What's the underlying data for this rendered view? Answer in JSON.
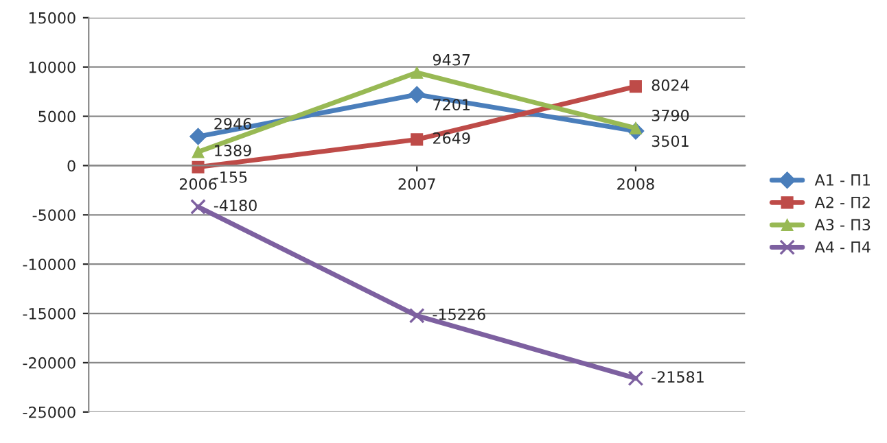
{
  "chart_data": {
    "type": "line",
    "categories": [
      "2006",
      "2007",
      "2008"
    ],
    "series": [
      {
        "name": "А1 - П1",
        "color": "#4a7ebb",
        "marker": "diamond",
        "values": [
          2946,
          7201,
          3501
        ]
      },
      {
        "name": "А2 - П2",
        "color": "#be4b48",
        "marker": "square",
        "values": [
          -155,
          2649,
          8024
        ]
      },
      {
        "name": "А3 - П3",
        "color": "#98b954",
        "marker": "triangle",
        "values": [
          1389,
          9437,
          3790
        ]
      },
      {
        "name": "А4 - П4",
        "color": "#7d60a0",
        "marker": "cross",
        "values": [
          -4180,
          -15226,
          -21581
        ]
      }
    ],
    "ylim": [
      -25000,
      15000
    ],
    "yticks": [
      -25000,
      -20000,
      -15000,
      -10000,
      -5000,
      0,
      5000,
      10000,
      15000
    ],
    "grid": "y",
    "legend": "right",
    "data_labels": true
  }
}
